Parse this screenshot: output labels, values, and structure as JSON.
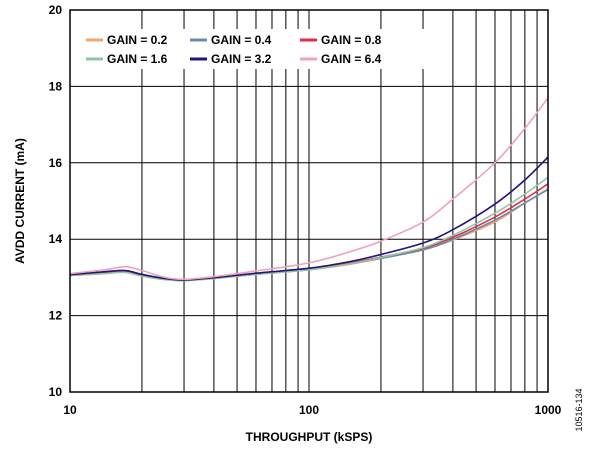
{
  "chart_data": {
    "type": "line",
    "xscale": "log",
    "xlim": [
      10,
      1000
    ],
    "ylim": [
      10,
      20
    ],
    "xlabel": "THROUGHPUT (kSPS)",
    "ylabel": "AVDD CURRENT (mA)",
    "xticks": [
      10,
      100,
      1000
    ],
    "xtick_labels": [
      "10",
      "100",
      "1000"
    ],
    "yticks": [
      10,
      12,
      14,
      16,
      18,
      20
    ],
    "ytick_labels": [
      "10",
      "12",
      "14",
      "16",
      "18",
      "20"
    ],
    "grid": true,
    "legend_position": "top-left",
    "figure_id": "10516-134",
    "series": [
      {
        "name": "GAIN = 0.2",
        "color": "#f4a46e",
        "points": [
          [
            10,
            13.05
          ],
          [
            14,
            13.1
          ],
          [
            17,
            13.15
          ],
          [
            20,
            13.05
          ],
          [
            25,
            12.95
          ],
          [
            30,
            12.92
          ],
          [
            40,
            12.97
          ],
          [
            60,
            13.08
          ],
          [
            100,
            13.2
          ],
          [
            150,
            13.35
          ],
          [
            200,
            13.5
          ],
          [
            300,
            13.72
          ],
          [
            400,
            13.98
          ],
          [
            600,
            14.45
          ],
          [
            800,
            14.95
          ],
          [
            1000,
            15.32
          ]
        ]
      },
      {
        "name": "GAIN = 0.4",
        "color": "#6d87ad",
        "points": [
          [
            10,
            13.05
          ],
          [
            14,
            13.12
          ],
          [
            17,
            13.15
          ],
          [
            20,
            13.05
          ],
          [
            25,
            12.95
          ],
          [
            30,
            12.92
          ],
          [
            40,
            12.98
          ],
          [
            60,
            13.08
          ],
          [
            100,
            13.2
          ],
          [
            150,
            13.36
          ],
          [
            200,
            13.5
          ],
          [
            300,
            13.72
          ],
          [
            400,
            14.0
          ],
          [
            600,
            14.5
          ],
          [
            800,
            14.95
          ],
          [
            1000,
            15.3
          ]
        ]
      },
      {
        "name": "GAIN = 0.8",
        "color": "#dc2f4b",
        "points": [
          [
            10,
            13.07
          ],
          [
            14,
            13.14
          ],
          [
            17,
            13.17
          ],
          [
            20,
            13.07
          ],
          [
            25,
            12.96
          ],
          [
            30,
            12.93
          ],
          [
            40,
            12.98
          ],
          [
            60,
            13.1
          ],
          [
            100,
            13.22
          ],
          [
            150,
            13.38
          ],
          [
            200,
            13.53
          ],
          [
            300,
            13.76
          ],
          [
            400,
            14.05
          ],
          [
            600,
            14.58
          ],
          [
            800,
            15.05
          ],
          [
            1000,
            15.45
          ]
        ]
      },
      {
        "name": "GAIN = 1.6",
        "color": "#8fc7a3",
        "points": [
          [
            10,
            13.05
          ],
          [
            14,
            13.1
          ],
          [
            17,
            13.13
          ],
          [
            20,
            13.03
          ],
          [
            25,
            12.94
          ],
          [
            30,
            12.92
          ],
          [
            40,
            12.97
          ],
          [
            60,
            13.08
          ],
          [
            100,
            13.2
          ],
          [
            150,
            13.36
          ],
          [
            200,
            13.52
          ],
          [
            300,
            13.78
          ],
          [
            400,
            14.1
          ],
          [
            600,
            14.68
          ],
          [
            800,
            15.18
          ],
          [
            1000,
            15.62
          ]
        ]
      },
      {
        "name": "GAIN = 3.2",
        "color": "#25127a",
        "points": [
          [
            10,
            13.07
          ],
          [
            14,
            13.15
          ],
          [
            17,
            13.18
          ],
          [
            20,
            13.08
          ],
          [
            25,
            12.97
          ],
          [
            30,
            12.93
          ],
          [
            40,
            12.99
          ],
          [
            60,
            13.11
          ],
          [
            100,
            13.24
          ],
          [
            150,
            13.42
          ],
          [
            200,
            13.6
          ],
          [
            300,
            13.9
          ],
          [
            400,
            14.25
          ],
          [
            600,
            14.92
          ],
          [
            800,
            15.55
          ],
          [
            1000,
            16.15
          ]
        ]
      },
      {
        "name": "GAIN = 6.4",
        "color": "#f0a3b8",
        "points": [
          [
            10,
            13.1
          ],
          [
            14,
            13.2
          ],
          [
            17,
            13.28
          ],
          [
            20,
            13.18
          ],
          [
            25,
            13.0
          ],
          [
            30,
            12.95
          ],
          [
            40,
            13.02
          ],
          [
            60,
            13.17
          ],
          [
            100,
            13.38
          ],
          [
            150,
            13.68
          ],
          [
            200,
            13.95
          ],
          [
            300,
            14.45
          ],
          [
            400,
            15.05
          ],
          [
            600,
            16.0
          ],
          [
            800,
            16.9
          ],
          [
            1000,
            17.7
          ]
        ]
      }
    ]
  }
}
